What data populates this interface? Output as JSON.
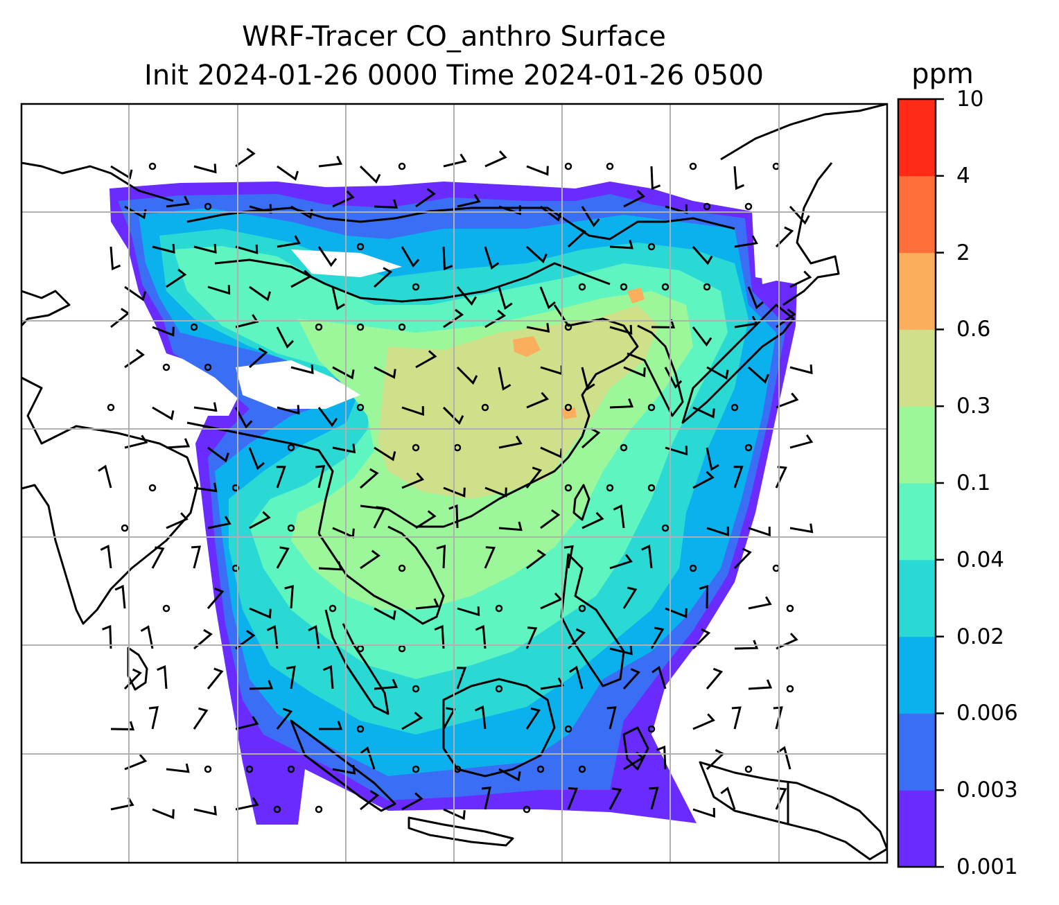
{
  "title": {
    "line1": "WRF-Tracer CO_anthro Surface",
    "line2": "Init 2024-01-26 0000 Time 2024-01-26 0500"
  },
  "colorbar": {
    "unit": "ppm",
    "levels": [
      "0.001",
      "0.003",
      "0.006",
      "0.02",
      "0.04",
      "0.1",
      "0.3",
      "0.6",
      "2",
      "4",
      "10"
    ],
    "colors": [
      "#6a2bff",
      "#3a6ff5",
      "#0bb1ec",
      "#2ad9d4",
      "#5ef5c0",
      "#9cf79a",
      "#cfe08a",
      "#fcae5f",
      "#ff6f3a",
      "#ff2b17"
    ]
  },
  "map": {
    "background": "#ffffff",
    "grid_color": "#b0b0b0",
    "coast_color": "#000000",
    "field_levels_shown": [
      "0.003",
      "0.006",
      "0.02",
      "0.04",
      "0.1",
      "0.3",
      "0.6"
    ]
  }
}
